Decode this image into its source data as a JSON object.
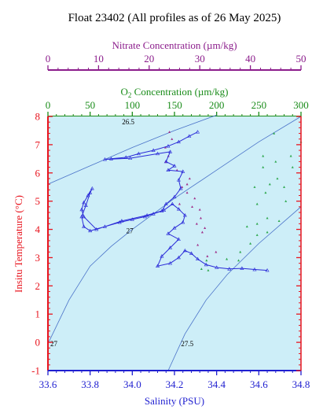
{
  "chart_data": {
    "type": "scatter",
    "title": "Float 23402  (All profiles as of 26 May 2025)",
    "colors": {
      "temperature_axis": "#e8141e",
      "salinity_axis": "#1f1fd0",
      "oxygen_axis": "#1a8c1a",
      "nitrate_axis": "#8b1c8b",
      "plot_background": "#cdeef8",
      "profile_line": "#2b2bd8",
      "contour_line": "#4a72c8",
      "oxygen_marks": "#2ea84e",
      "nitrate_marks": "#a0308a"
    },
    "axes": {
      "x": {
        "label": "Salinity (PSU)",
        "range": [
          33.6,
          34.8
        ],
        "ticks": [
          "33.6",
          "33.8",
          "34.0",
          "34.2",
          "34.4",
          "34.6",
          "34.8"
        ]
      },
      "y": {
        "label": "Insitu Temperature (°C)",
        "range": [
          -1,
          8
        ],
        "ticks": [
          "-1",
          "0",
          "1",
          "2",
          "3",
          "4",
          "5",
          "6",
          "7",
          "8"
        ]
      },
      "x_top_oxygen": {
        "label": "O2 Concentration (µm/kg)",
        "range": [
          0,
          300
        ],
        "ticks": [
          "0",
          "50",
          "100",
          "150",
          "200",
          "250",
          "300"
        ]
      },
      "x_top_nitrate": {
        "label": "Nitrate Concentration (µm/kg)",
        "range": [
          0,
          50
        ],
        "ticks": [
          "0",
          "10",
          "20",
          "30",
          "40",
          "50"
        ]
      }
    },
    "density_contours": [
      {
        "label": "26.5",
        "points": [
          [
            33.6,
            5.6
          ],
          [
            33.8,
            6.25
          ],
          [
            34.0,
            6.9
          ],
          [
            34.2,
            7.5
          ],
          [
            34.4,
            8.05
          ]
        ]
      },
      {
        "label": "27",
        "points": [
          [
            33.6,
            -0.05
          ],
          [
            33.7,
            1.5
          ],
          [
            33.8,
            2.7
          ],
          [
            33.9,
            3.4
          ],
          [
            34.0,
            4.0
          ],
          [
            34.2,
            5.1
          ],
          [
            34.4,
            6.1
          ],
          [
            34.6,
            7.1
          ],
          [
            34.8,
            8.0
          ]
        ]
      },
      {
        "label": "27.5",
        "points": [
          [
            34.17,
            -1.0
          ],
          [
            34.25,
            0.3
          ],
          [
            34.35,
            1.5
          ],
          [
            34.45,
            2.4
          ],
          [
            34.6,
            3.5
          ],
          [
            34.8,
            4.8
          ]
        ]
      }
    ],
    "contour_labels": [
      {
        "text": "26.5",
        "at": [
          33.94,
          7.8
        ]
      },
      {
        "text": "27",
        "at": [
          33.96,
          3.95
        ]
      },
      {
        "text": "27",
        "at": [
          33.6,
          -0.05
        ]
      },
      {
        "text": "27.5",
        "at": [
          34.22,
          -0.05
        ]
      }
    ],
    "series": [
      {
        "name": "",
        "marker": "line-triangle",
        "points": [
          [
            34.31,
            7.45
          ],
          [
            34.27,
            7.3
          ],
          [
            34.22,
            7.1
          ],
          [
            34.17,
            6.95
          ],
          [
            34.1,
            6.8
          ],
          [
            34.03,
            6.68
          ],
          [
            33.97,
            6.55
          ],
          [
            33.9,
            6.5
          ],
          [
            33.87,
            6.48
          ],
          [
            33.99,
            6.52
          ],
          [
            34.12,
            6.68
          ],
          [
            34.18,
            6.75
          ],
          [
            34.16,
            6.4
          ],
          [
            34.2,
            6.25
          ],
          [
            34.17,
            6.1
          ],
          [
            34.24,
            6.05
          ],
          [
            34.22,
            5.75
          ],
          [
            34.23,
            5.45
          ],
          [
            34.2,
            5.15
          ],
          [
            34.16,
            4.9
          ],
          [
            34.14,
            4.65
          ],
          [
            34.1,
            4.55
          ],
          [
            34.06,
            4.45
          ],
          [
            34.0,
            4.35
          ],
          [
            33.94,
            4.25
          ],
          [
            33.87,
            4.1
          ],
          [
            33.8,
            3.95
          ],
          [
            33.77,
            4.1
          ],
          [
            33.76,
            4.45
          ],
          [
            33.78,
            4.85
          ],
          [
            33.8,
            5.3
          ],
          [
            33.81,
            5.45
          ],
          [
            33.79,
            5.2
          ],
          [
            33.77,
            4.95
          ],
          [
            33.76,
            4.7
          ],
          [
            33.77,
            4.45
          ],
          [
            33.83,
            4.0
          ],
          [
            33.95,
            4.3
          ],
          [
            34.07,
            4.5
          ],
          [
            34.15,
            4.68
          ],
          [
            34.19,
            4.9
          ],
          [
            34.22,
            4.72
          ],
          [
            34.25,
            4.5
          ],
          [
            34.24,
            4.25
          ],
          [
            34.2,
            4.05
          ],
          [
            34.17,
            3.85
          ],
          [
            34.22,
            3.65
          ],
          [
            34.18,
            3.35
          ],
          [
            34.14,
            3.05
          ],
          [
            34.12,
            2.7
          ],
          [
            34.18,
            2.8
          ],
          [
            34.22,
            3.0
          ],
          [
            34.25,
            3.25
          ],
          [
            34.28,
            3.15
          ],
          [
            34.31,
            2.95
          ],
          [
            34.35,
            2.75
          ],
          [
            34.4,
            2.65
          ],
          [
            34.46,
            2.6
          ],
          [
            34.52,
            2.62
          ],
          [
            34.58,
            2.58
          ],
          [
            34.64,
            2.55
          ]
        ]
      }
    ],
    "oxygen_scatter": [
      [
        255,
        6.6
      ],
      [
        270,
        6.4
      ],
      [
        290,
        6.2
      ],
      [
        255,
        6.2
      ],
      [
        272,
        5.8
      ],
      [
        245,
        5.5
      ],
      [
        258,
        5.3
      ],
      [
        280,
        5.5
      ],
      [
        282,
        5.0
      ],
      [
        248,
        4.9
      ],
      [
        260,
        4.4
      ],
      [
        248,
        4.2
      ],
      [
        236,
        4.1
      ],
      [
        260,
        3.9
      ],
      [
        274,
        4.3
      ],
      [
        240,
        3.5
      ],
      [
        228,
        3.2
      ],
      [
        226,
        2.9
      ],
      [
        212,
        2.95
      ],
      [
        190,
        2.55
      ],
      [
        188,
        2.9
      ],
      [
        182,
        2.6
      ],
      [
        268,
        7.4
      ],
      [
        300,
        7.1
      ],
      [
        248,
        3.8
      ],
      [
        263,
        5.6
      ],
      [
        288,
        6.6
      ]
    ],
    "nitrate_scatter": [
      [
        24,
        7.45
      ],
      [
        24.5,
        7.2
      ],
      [
        23.2,
        6.9
      ],
      [
        23.8,
        6.6
      ],
      [
        23.3,
        6.4
      ],
      [
        25.5,
        6.1
      ],
      [
        28,
        5.8
      ],
      [
        26.5,
        5.5
      ],
      [
        27.5,
        5.3
      ],
      [
        29,
        5.1
      ],
      [
        28.5,
        4.8
      ],
      [
        30,
        4.7
      ],
      [
        30.2,
        4.4
      ],
      [
        29.4,
        4.2
      ],
      [
        31,
        4.05
      ],
      [
        30.5,
        3.9
      ],
      [
        27.5,
        5.6
      ],
      [
        33.2,
        3.2
      ],
      [
        31.5,
        3.05
      ],
      [
        29.6,
        3.45
      ],
      [
        26,
        4.9
      ]
    ]
  }
}
